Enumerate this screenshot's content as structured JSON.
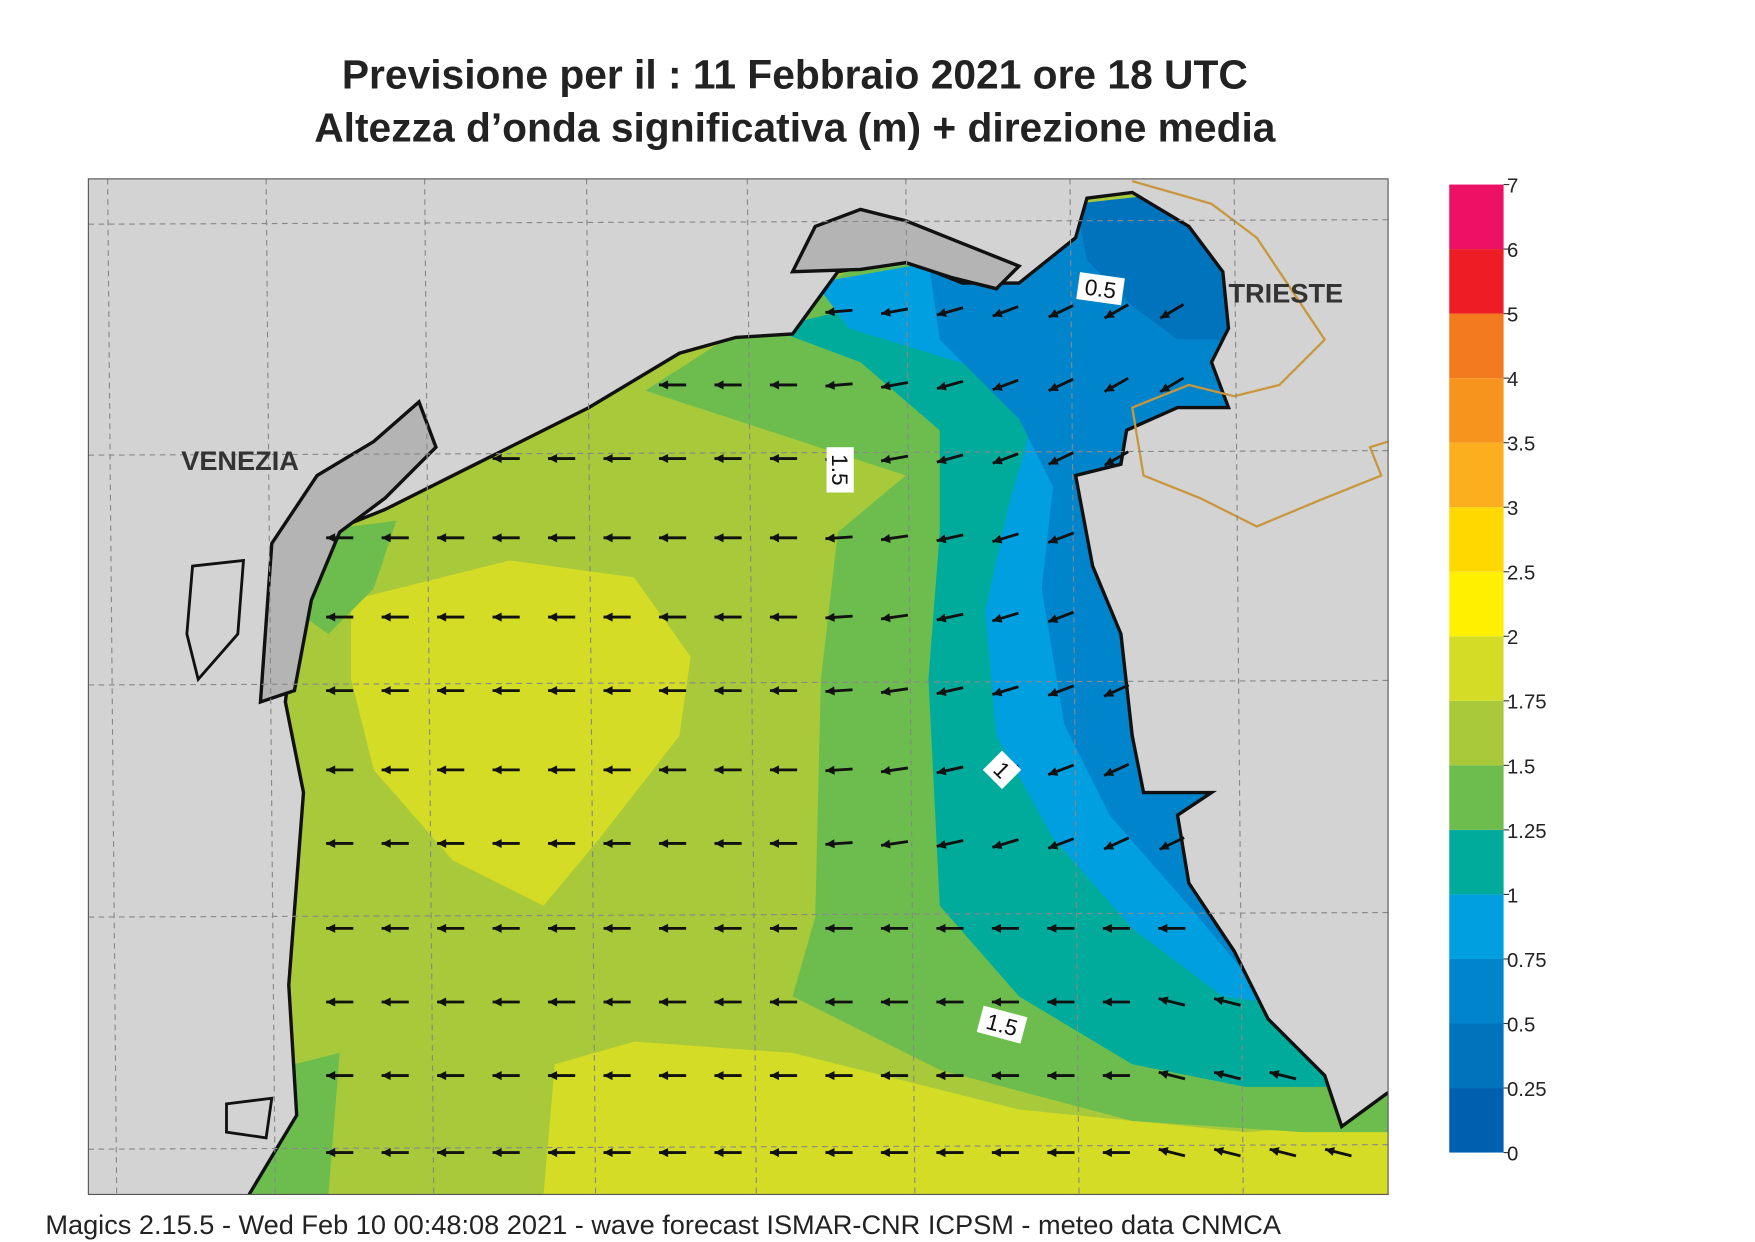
{
  "header": {
    "title": "Previsione per il  :  11  Febbraio 2021   ore 18 UTC",
    "subtitle": "Altezza d’onda significativa (m) + direzione media"
  },
  "map": {
    "places": [
      "VENEZIA",
      "TRIESTE"
    ],
    "contour_labels": [
      "0.5",
      "1.5",
      "1",
      "1.5"
    ]
  },
  "legend": {
    "levels": [
      0,
      0.25,
      0.5,
      0.75,
      1,
      1.25,
      1.5,
      1.75,
      2,
      2.5,
      3,
      3.5,
      4,
      5,
      6,
      7
    ],
    "colors": [
      "#0060b0",
      "#0073bd",
      "#0085cc",
      "#009fe0",
      "#00ab9c",
      "#6cbd4e",
      "#a8c93a",
      "#d4dc26",
      "#fff000",
      "#ffd800",
      "#fbaf1e",
      "#f7941d",
      "#f47a20",
      "#ee1c24",
      "#ec1163"
    ]
  },
  "footer": "Magics 2.15.5 - Wed Feb 10 00:48:08 2021 - wave forecast  ISMAR-CNR  ICPSM - meteo data   CNMCA"
}
